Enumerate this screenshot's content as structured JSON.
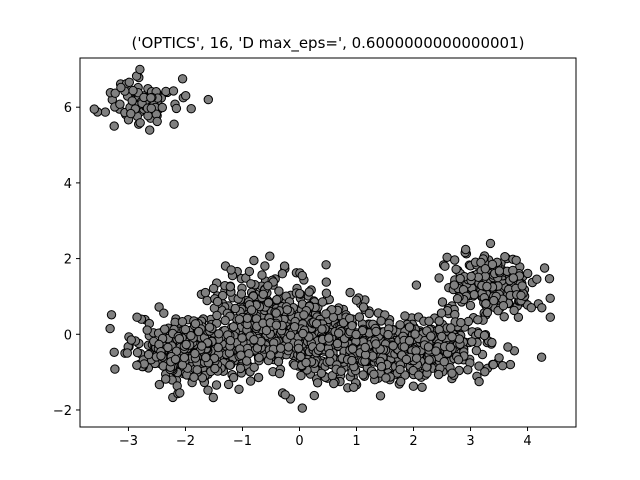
{
  "chart_data": {
    "type": "scatter",
    "title": "('OPTICS', 16, 'D max_eps=', 0.6000000000000001)",
    "xlabel": "",
    "ylabel": "",
    "xlim": [
      -3.85,
      4.85
    ],
    "ylim": [
      -2.45,
      7.3
    ],
    "xticks": [
      -3,
      -2,
      -1,
      0,
      1,
      2,
      3,
      4
    ],
    "xtick_labels": [
      "−3",
      "−2",
      "−1",
      "0",
      "1",
      "2",
      "3",
      "4"
    ],
    "yticks": [
      -2,
      0,
      2,
      4,
      6
    ],
    "ytick_labels": [
      "−2",
      "0",
      "2",
      "4",
      "6"
    ],
    "grid": false,
    "legend": "none",
    "marker_fill": "#808080",
    "marker_edge": "#000000",
    "clusters": [
      {
        "center": [
          -2.75,
          6.15
        ],
        "spread": [
          0.3,
          0.3
        ],
        "count": 90,
        "outliers": [
          [
            -3.6,
            5.95
          ],
          [
            -2.05,
            6.75
          ],
          [
            -1.6,
            6.2
          ],
          [
            -3.25,
            5.5
          ],
          [
            -2.8,
            7.0
          ],
          [
            -2.2,
            5.55
          ]
        ]
      },
      {
        "center": [
          3.35,
          1.3
        ],
        "spread": [
          0.38,
          0.4
        ],
        "count": 230,
        "outliers": [
          [
            4.4,
            0.45
          ],
          [
            4.25,
            0.7
          ],
          [
            3.7,
            -0.8
          ],
          [
            3.3,
            -0.9
          ],
          [
            2.55,
            1.8
          ],
          [
            3.35,
            2.4
          ],
          [
            4.3,
            1.75
          ]
        ]
      },
      {
        "center": [
          -0.55,
          0.3
        ],
        "spread": [
          0.55,
          0.6
        ],
        "count": 500,
        "outliers": [
          [
            -0.8,
            1.95
          ],
          [
            0.05,
            1.55
          ],
          [
            -1.2,
            1.7
          ],
          [
            0.05,
            -1.95
          ],
          [
            -0.3,
            1.6
          ]
        ]
      },
      {
        "center": [
          -1.9,
          -0.45
        ],
        "spread": [
          0.5,
          0.42
        ],
        "count": 350,
        "outliers": [
          [
            -2.95,
            -0.15
          ],
          [
            -2.85,
            0.45
          ],
          [
            -2.1,
            -1.55
          ],
          [
            -1.65,
            1.1
          ]
        ]
      },
      {
        "center": [
          1.0,
          -0.3
        ],
        "spread": [
          0.65,
          0.42
        ],
        "count": 430,
        "outliers": [
          [
            1.0,
            0.9
          ],
          [
            0.95,
            -1.4
          ],
          [
            -0.25,
            -1.6
          ],
          [
            0.6,
            -1.3
          ]
        ]
      },
      {
        "center": [
          2.3,
          -0.4
        ],
        "spread": [
          0.55,
          0.35
        ],
        "count": 270,
        "outliers": [
          [
            2.05,
            1.3
          ],
          [
            2.45,
            0.35
          ],
          [
            3.4,
            -0.8
          ],
          [
            3.15,
            -1.25
          ],
          [
            2.15,
            -1.4
          ]
        ]
      }
    ]
  }
}
